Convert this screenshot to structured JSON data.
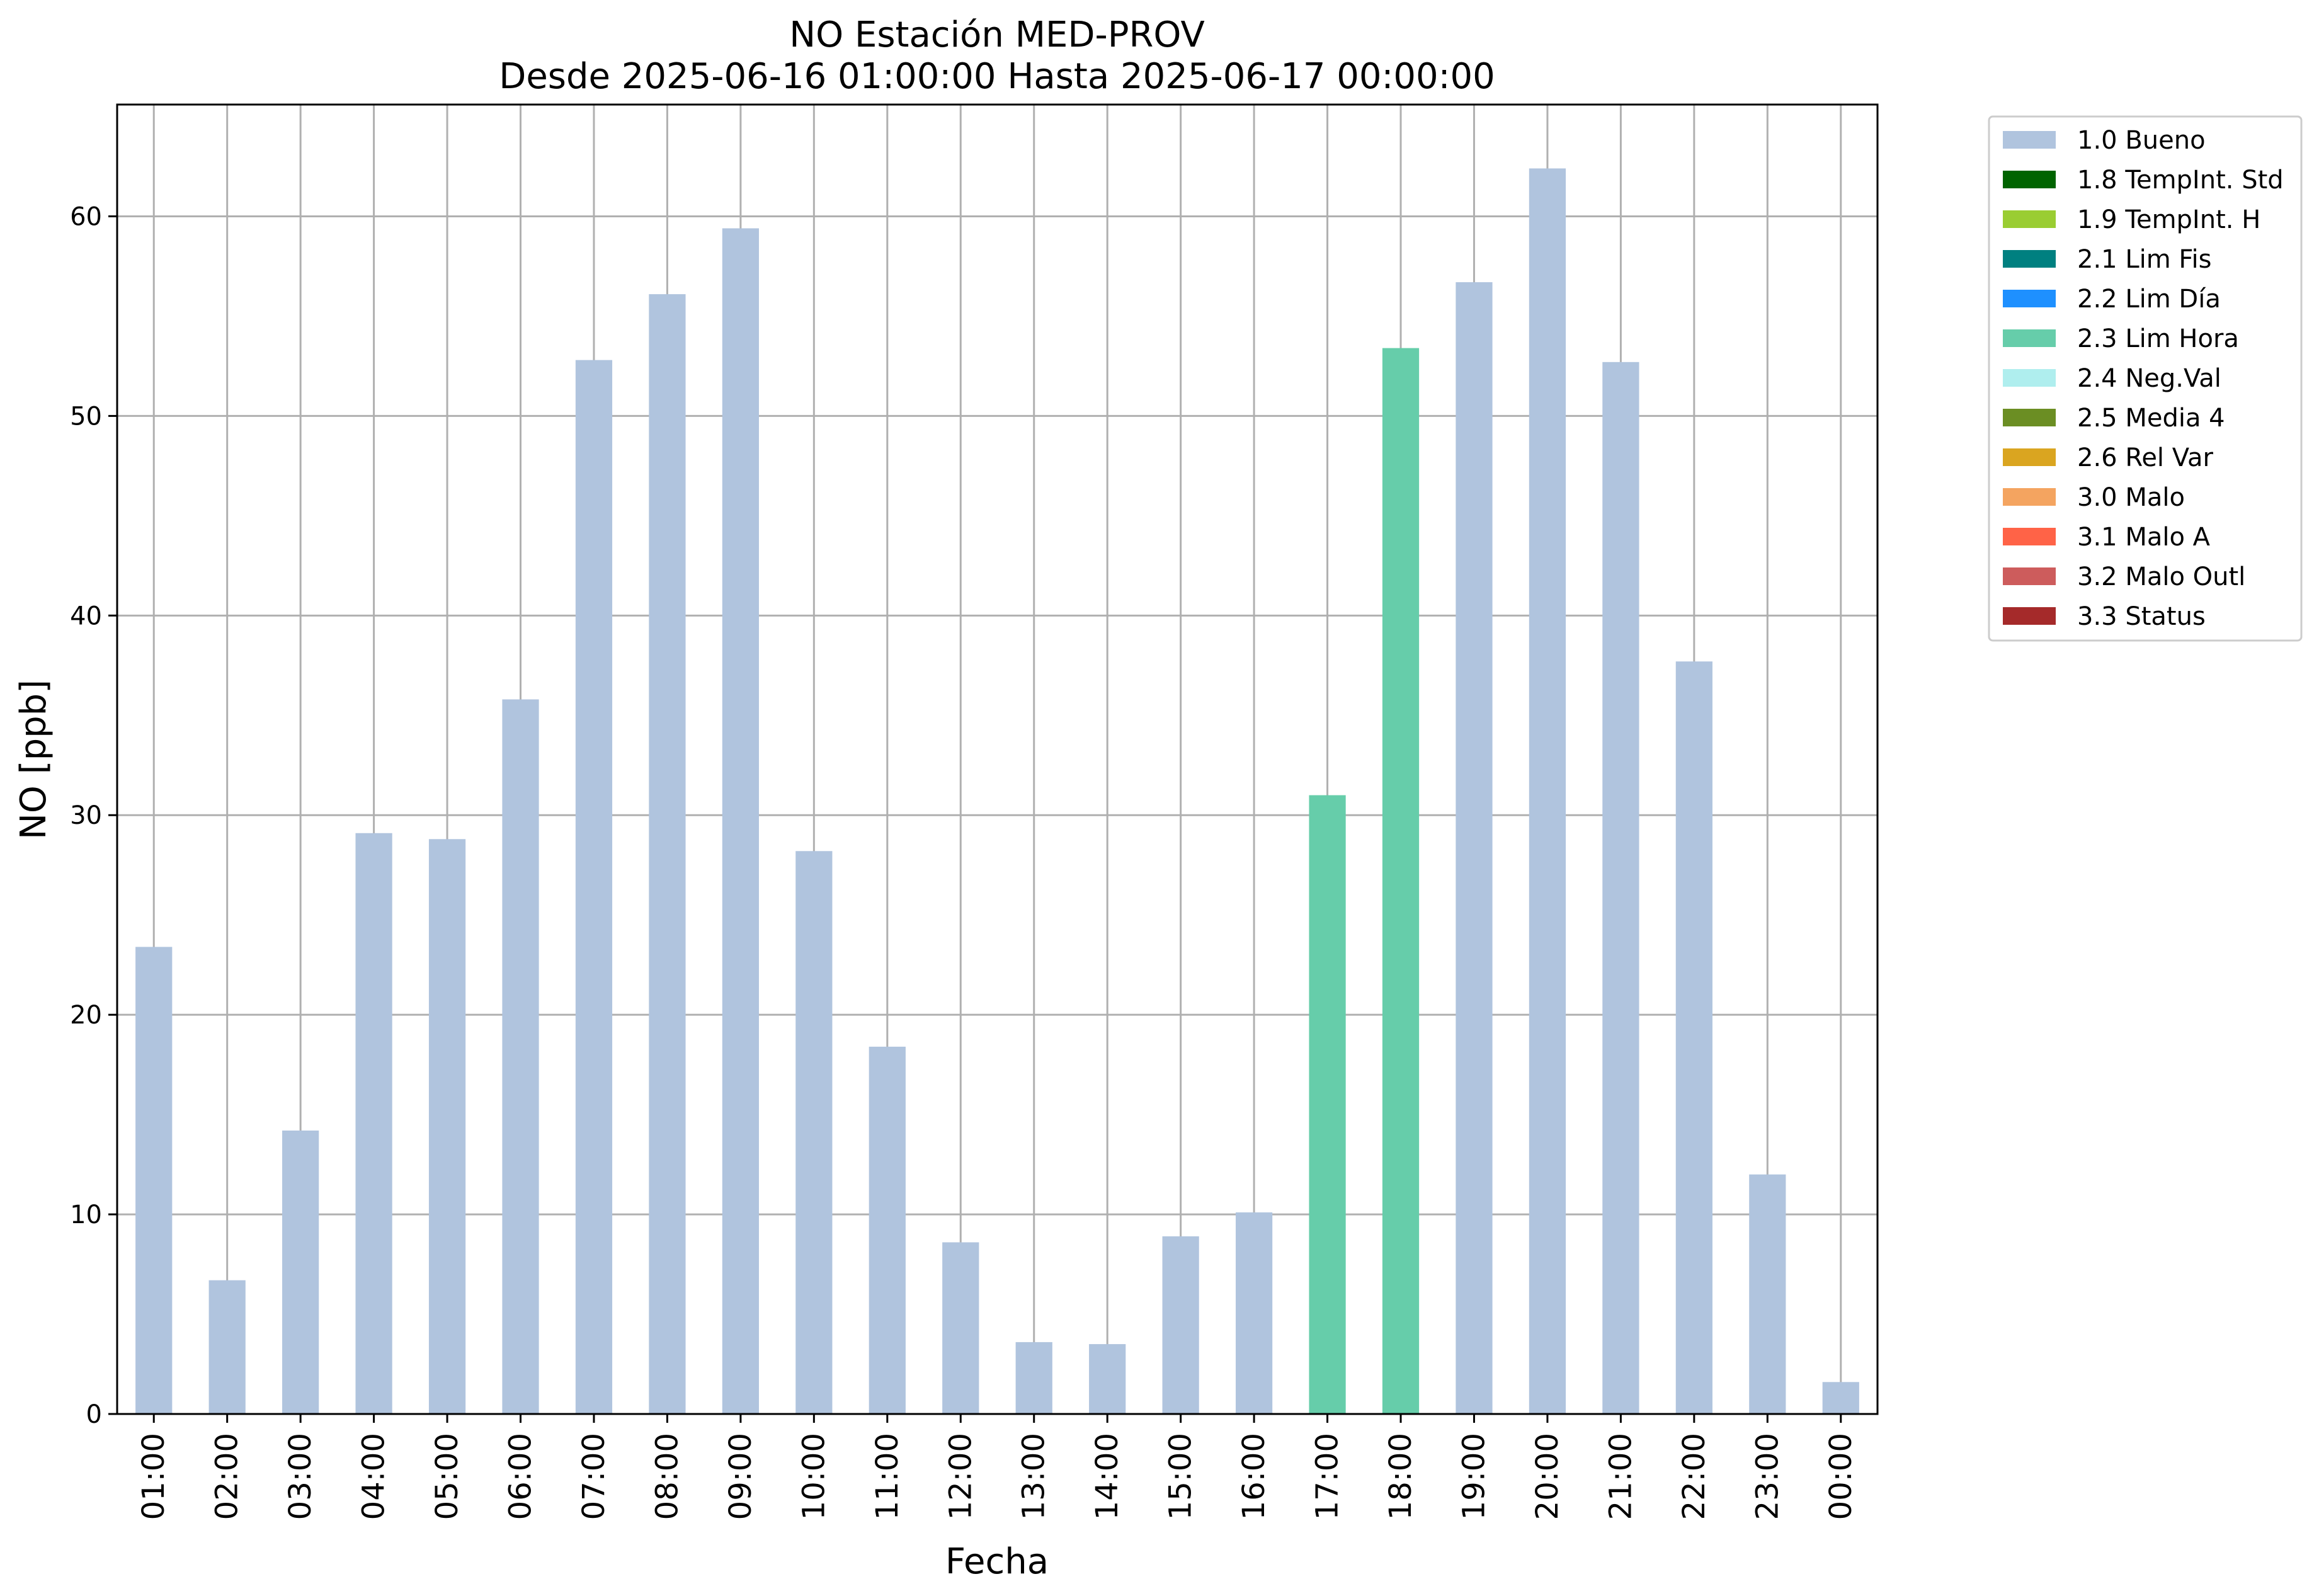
{
  "chart_data": {
    "type": "bar",
    "title": "NO Estación MED-PROV",
    "subtitle": "Desde 2025-06-16 01:00:00 Hasta 2025-06-17 00:00:00",
    "xlabel": "Fecha",
    "ylabel": "NO [ppb]",
    "ylim": [
      0,
      65.6
    ],
    "yticks": [
      0,
      10,
      20,
      30,
      40,
      50,
      60
    ],
    "grid": true,
    "legend_position": "outside-top-right",
    "categories": [
      "01:00",
      "02:00",
      "03:00",
      "04:00",
      "05:00",
      "06:00",
      "07:00",
      "08:00",
      "09:00",
      "10:00",
      "11:00",
      "12:00",
      "13:00",
      "14:00",
      "15:00",
      "16:00",
      "17:00",
      "18:00",
      "19:00",
      "20:00",
      "21:00",
      "22:00",
      "23:00",
      "00:00"
    ],
    "values": [
      23.4,
      6.7,
      14.2,
      29.1,
      28.8,
      35.8,
      52.8,
      56.1,
      59.4,
      28.2,
      18.4,
      8.6,
      3.6,
      3.5,
      8.9,
      10.1,
      31.0,
      53.4,
      56.7,
      62.4,
      52.7,
      37.7,
      12.0,
      1.6
    ],
    "flags": [
      "1.0 Bueno",
      "1.0 Bueno",
      "1.0 Bueno",
      "1.0 Bueno",
      "1.0 Bueno",
      "1.0 Bueno",
      "1.0 Bueno",
      "1.0 Bueno",
      "1.0 Bueno",
      "1.0 Bueno",
      "1.0 Bueno",
      "1.0 Bueno",
      "1.0 Bueno",
      "1.0 Bueno",
      "1.0 Bueno",
      "1.0 Bueno",
      "2.3 Lim Hora",
      "2.3 Lim Hora",
      "1.0 Bueno",
      "1.0 Bueno",
      "1.0 Bueno",
      "1.0 Bueno",
      "1.0 Bueno",
      "1.0 Bueno"
    ],
    "legend": [
      {
        "label": "1.0 Bueno",
        "color": "#b0c4de"
      },
      {
        "label": "1.8 TempInt. Std",
        "color": "#006400"
      },
      {
        "label": "1.9 TempInt. H",
        "color": "#9acd32"
      },
      {
        "label": "2.1 Lim Fis",
        "color": "#008080"
      },
      {
        "label": "2.2 Lim Día",
        "color": "#1e90ff"
      },
      {
        "label": "2.3 Lim Hora",
        "color": "#66cdaa"
      },
      {
        "label": "2.4 Neg.Val",
        "color": "#afeeee"
      },
      {
        "label": "2.5 Media 4",
        "color": "#6b8e23"
      },
      {
        "label": "2.6 Rel Var",
        "color": "#daa520"
      },
      {
        "label": "3.0 Malo",
        "color": "#f4a460"
      },
      {
        "label": "3.1 Malo A",
        "color": "#ff6347"
      },
      {
        "label": "3.2 Malo Outl",
        "color": "#cd5c5c"
      },
      {
        "label": "3.3 Status",
        "color": "#a52a2a"
      }
    ]
  }
}
